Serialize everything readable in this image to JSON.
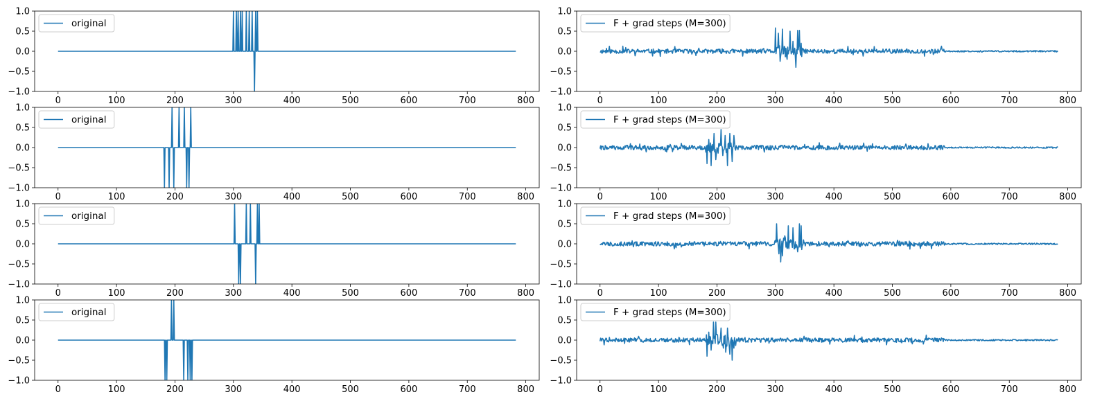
{
  "chart_data": [
    {
      "type": "line",
      "position": "row-1-left",
      "legend": {
        "label": "original",
        "placement": "upper left"
      },
      "xlim": [
        -40,
        823
      ],
      "ylim": [
        -1,
        1
      ],
      "xticks": [
        0,
        100,
        200,
        300,
        400,
        500,
        600,
        700,
        800
      ],
      "yticks": [
        -1.0,
        -0.5,
        0.0,
        0.5,
        1.0
      ],
      "color": "#1f77b4",
      "n_points": 784,
      "kind": "sparse",
      "baseline": 0,
      "spikes": [
        [
          300,
          1
        ],
        [
          305,
          1
        ],
        [
          308,
          1
        ],
        [
          312,
          1
        ],
        [
          315,
          1
        ],
        [
          322,
          1
        ],
        [
          327,
          1
        ],
        [
          332,
          1
        ],
        [
          336,
          -1
        ],
        [
          338,
          1
        ],
        [
          341,
          1
        ]
      ]
    },
    {
      "type": "line",
      "position": "row-1-right",
      "legend": {
        "label": "F + grad steps (M=300)",
        "placement": "upper left"
      },
      "xlim": [
        -40,
        823
      ],
      "ylim": [
        -1,
        1
      ],
      "xticks": [
        0,
        100,
        200,
        300,
        400,
        500,
        600,
        700,
        800
      ],
      "yticks": [
        -1.0,
        -0.5,
        0.0,
        0.5,
        1.0
      ],
      "color": "#1f77b4",
      "n_points": 784,
      "kind": "noisy",
      "seed": 11,
      "burst": {
        "start": 298,
        "end": 346,
        "peaks": [
          [
            300,
            0.58
          ],
          [
            305,
            0.45
          ],
          [
            308,
            -0.25
          ],
          [
            312,
            0.55
          ],
          [
            316,
            0.1
          ],
          [
            320,
            -0.2
          ],
          [
            325,
            0.5
          ],
          [
            330,
            0.25
          ],
          [
            335,
            -0.4
          ],
          [
            338,
            0.52
          ],
          [
            341,
            0.52
          ],
          [
            344,
            0.2
          ]
        ]
      }
    },
    {
      "type": "line",
      "position": "row-2-left",
      "legend": {
        "label": "original",
        "placement": "upper left"
      },
      "xlim": [
        -40,
        823
      ],
      "ylim": [
        -1,
        1
      ],
      "xticks": [
        0,
        100,
        200,
        300,
        400,
        500,
        600,
        700,
        800
      ],
      "yticks": [
        -1.0,
        -0.5,
        0.0,
        0.5,
        1.0
      ],
      "color": "#1f77b4",
      "n_points": 784,
      "kind": "sparse",
      "baseline": 0,
      "spikes": [
        [
          182,
          -1
        ],
        [
          190,
          -1
        ],
        [
          195,
          1
        ],
        [
          198,
          -1
        ],
        [
          207,
          1
        ],
        [
          216,
          1
        ],
        [
          220,
          -1
        ],
        [
          224,
          -1
        ],
        [
          227,
          1
        ]
      ]
    },
    {
      "type": "line",
      "position": "row-2-right",
      "legend": {
        "label": "F + grad steps (M=300)",
        "placement": "upper left"
      },
      "xlim": [
        -40,
        823
      ],
      "ylim": [
        -1,
        1
      ],
      "xticks": [
        0,
        100,
        200,
        300,
        400,
        500,
        600,
        700,
        800
      ],
      "yticks": [
        -1.0,
        -0.5,
        0.0,
        0.5,
        1.0
      ],
      "color": "#1f77b4",
      "n_points": 784,
      "kind": "noisy",
      "seed": 22,
      "burst": {
        "start": 180,
        "end": 232,
        "peaks": [
          [
            183,
            -0.4
          ],
          [
            186,
            0.2
          ],
          [
            190,
            -0.45
          ],
          [
            195,
            0.35
          ],
          [
            198,
            -0.3
          ],
          [
            203,
            0.1
          ],
          [
            207,
            0.45
          ],
          [
            210,
            -0.2
          ],
          [
            214,
            0.3
          ],
          [
            218,
            -0.45
          ],
          [
            222,
            0.35
          ],
          [
            226,
            -0.35
          ],
          [
            229,
            0.3
          ]
        ]
      }
    },
    {
      "type": "line",
      "position": "row-3-left",
      "legend": {
        "label": "original",
        "placement": "upper left"
      },
      "xlim": [
        -40,
        823
      ],
      "ylim": [
        -1,
        1
      ],
      "xticks": [
        0,
        100,
        200,
        300,
        400,
        500,
        600,
        700,
        800
      ],
      "yticks": [
        -1.0,
        -0.5,
        0.0,
        0.5,
        1.0
      ],
      "color": "#1f77b4",
      "n_points": 784,
      "kind": "sparse",
      "baseline": 0,
      "spikes": [
        [
          302,
          1
        ],
        [
          309,
          -1
        ],
        [
          312,
          -1
        ],
        [
          322,
          1
        ],
        [
          329,
          1
        ],
        [
          338,
          -1
        ],
        [
          341,
          1
        ],
        [
          344,
          1
        ]
      ]
    },
    {
      "type": "line",
      "position": "row-3-right",
      "legend": {
        "label": "F + grad steps (M=300)",
        "placement": "upper left"
      },
      "xlim": [
        -40,
        823
      ],
      "ylim": [
        -1,
        1
      ],
      "xticks": [
        0,
        100,
        200,
        300,
        400,
        500,
        600,
        700,
        800
      ],
      "yticks": [
        -1.0,
        -0.5,
        0.0,
        0.5,
        1.0
      ],
      "color": "#1f77b4",
      "n_points": 784,
      "kind": "noisy",
      "seed": 33,
      "burst": {
        "start": 298,
        "end": 348,
        "peaks": [
          [
            302,
            0.5
          ],
          [
            306,
            -0.25
          ],
          [
            309,
            -0.45
          ],
          [
            312,
            -0.3
          ],
          [
            316,
            0.2
          ],
          [
            322,
            0.45
          ],
          [
            326,
            0.1
          ],
          [
            330,
            0.4
          ],
          [
            334,
            0.05
          ],
          [
            338,
            -0.2
          ],
          [
            341,
            0.5
          ],
          [
            344,
            0.45
          ]
        ]
      }
    },
    {
      "type": "line",
      "position": "row-4-left",
      "legend": {
        "label": "original",
        "placement": "upper left"
      },
      "xlim": [
        -40,
        823
      ],
      "ylim": [
        -1,
        1
      ],
      "xticks": [
        0,
        100,
        200,
        300,
        400,
        500,
        600,
        700,
        800
      ],
      "yticks": [
        -1.0,
        -0.5,
        0.0,
        0.5,
        1.0
      ],
      "color": "#1f77b4",
      "n_points": 784,
      "kind": "sparse",
      "baseline": 0,
      "spikes": [
        [
          183,
          -1
        ],
        [
          186,
          -1
        ],
        [
          194,
          1
        ],
        [
          198,
          1
        ],
        [
          215,
          -1
        ],
        [
          222,
          -1
        ],
        [
          226,
          -1
        ],
        [
          229,
          -1
        ]
      ]
    },
    {
      "type": "line",
      "position": "row-4-right",
      "legend": {
        "label": "F + grad steps (M=300)",
        "placement": "upper left"
      },
      "xlim": [
        -40,
        823
      ],
      "ylim": [
        -1,
        1
      ],
      "xticks": [
        0,
        100,
        200,
        300,
        400,
        500,
        600,
        700,
        800
      ],
      "yticks": [
        -1.0,
        -0.5,
        0.0,
        0.5,
        1.0
      ],
      "color": "#1f77b4",
      "n_points": 784,
      "kind": "noisy",
      "seed": 44,
      "burst": {
        "start": 180,
        "end": 232,
        "peaks": [
          [
            183,
            -0.4
          ],
          [
            186,
            0.2
          ],
          [
            190,
            -0.25
          ],
          [
            194,
            0.45
          ],
          [
            198,
            0.45
          ],
          [
            202,
            -0.1
          ],
          [
            207,
            0.3
          ],
          [
            211,
            -0.2
          ],
          [
            215,
            -0.3
          ],
          [
            218,
            0.3
          ],
          [
            222,
            -0.35
          ],
          [
            226,
            -0.5
          ],
          [
            229,
            -0.2
          ]
        ]
      }
    }
  ]
}
